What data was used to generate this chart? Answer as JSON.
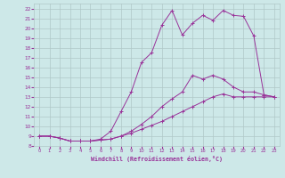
{
  "xlabel": "Windchill (Refroidissement éolien,°C)",
  "xlim": [
    -0.5,
    23.5
  ],
  "ylim": [
    8,
    22.5
  ],
  "xticks": [
    0,
    1,
    2,
    3,
    4,
    5,
    6,
    7,
    8,
    9,
    10,
    11,
    12,
    13,
    14,
    15,
    16,
    17,
    18,
    19,
    20,
    21,
    22,
    23
  ],
  "yticks": [
    8,
    9,
    10,
    11,
    12,
    13,
    14,
    15,
    16,
    17,
    18,
    19,
    20,
    21,
    22
  ],
  "bg_color": "#cde8e8",
  "grid_color": "#b0c8c8",
  "line_color": "#993399",
  "line1_x": [
    0,
    1,
    2,
    3,
    4,
    5,
    6,
    7,
    8,
    9,
    10,
    11,
    12,
    13,
    14,
    15,
    16,
    17,
    18,
    19,
    20,
    21,
    22,
    23
  ],
  "line1_y": [
    9.0,
    9.0,
    8.8,
    8.5,
    8.5,
    8.5,
    8.6,
    8.7,
    9.0,
    9.3,
    9.7,
    10.1,
    10.5,
    11.0,
    11.5,
    12.0,
    12.5,
    13.0,
    13.3,
    13.0,
    13.0,
    13.0,
    13.0,
    13.0
  ],
  "line2_x": [
    0,
    1,
    2,
    3,
    4,
    5,
    6,
    7,
    8,
    9,
    10,
    11,
    12,
    13,
    14,
    15,
    16,
    17,
    18,
    19,
    20,
    21,
    22,
    23
  ],
  "line2_y": [
    9.0,
    9.0,
    8.8,
    8.5,
    8.5,
    8.5,
    8.6,
    8.7,
    9.0,
    9.5,
    10.2,
    11.0,
    12.0,
    12.8,
    13.5,
    15.2,
    14.8,
    15.2,
    14.8,
    14.0,
    13.5,
    13.5,
    13.2,
    13.0
  ],
  "line3_x": [
    0,
    1,
    2,
    3,
    4,
    5,
    6,
    7,
    8,
    9,
    10,
    11,
    12,
    13,
    14,
    15,
    16,
    17,
    18,
    19,
    20,
    21,
    22,
    23
  ],
  "line3_y": [
    9.0,
    9.0,
    8.8,
    8.5,
    8.5,
    8.5,
    8.7,
    9.5,
    11.5,
    13.5,
    16.5,
    17.5,
    20.3,
    21.8,
    19.3,
    20.5,
    21.3,
    20.8,
    21.8,
    21.3,
    21.2,
    19.2,
    13.2,
    13.0
  ]
}
